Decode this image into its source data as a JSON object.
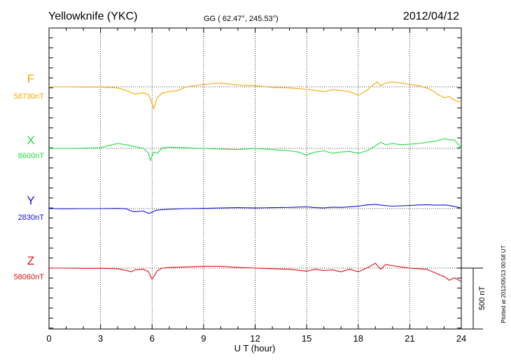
{
  "header": {
    "station": "Yellowknife (YKC)",
    "coords": "GG ( 62.47°, 245.53°)",
    "date": "2012/04/12"
  },
  "footer_note": "Plotted at 2012/05/13 00:58 UT",
  "scale_bar_label": "500 nT",
  "chart_data": {
    "type": "line",
    "title": "Yellowknife (YKC)",
    "xlabel": "U T (hour)",
    "xlim": [
      0,
      24
    ],
    "x_ticks": [
      "0",
      "3",
      "6",
      "9",
      "12",
      "15",
      "18",
      "21",
      "24"
    ],
    "grid": true,
    "y_unit": "nT",
    "scale_bar_nT": 500,
    "series": [
      {
        "name": "F",
        "baseline_label": "58730nT",
        "color": "#f5a800",
        "baseline": 58730,
        "x": [
          0,
          1,
          2,
          3,
          4,
          4.5,
          5,
          5.5,
          5.8,
          6.0,
          6.1,
          6.3,
          6.6,
          7,
          7.5,
          8,
          9,
          10,
          11,
          12,
          13,
          14,
          15,
          15.5,
          16,
          16.5,
          17,
          17.5,
          18,
          18.5,
          18.8,
          19.1,
          19.3,
          19.6,
          20,
          20.5,
          21,
          21.5,
          22,
          22.3,
          22.6,
          23,
          23.3,
          23.6,
          24
        ],
        "values": [
          58730,
          58730,
          58728,
          58728,
          58720,
          58700,
          58670,
          58680,
          58665,
          58590,
          58550,
          58640,
          58680,
          58690,
          58700,
          58730,
          58750,
          58760,
          58745,
          58740,
          58725,
          58720,
          58710,
          58700,
          58690,
          58705,
          58700,
          58690,
          58660,
          58700,
          58740,
          58770,
          58740,
          58760,
          58770,
          58760,
          58750,
          58740,
          58720,
          58700,
          58670,
          58640,
          58650,
          58620,
          58600
        ]
      },
      {
        "name": "X",
        "baseline_label": "8600nT",
        "color": "#22dd44",
        "baseline": 8600,
        "x": [
          0,
          1,
          2,
          3,
          3.5,
          4,
          4.5,
          5,
          5.5,
          5.8,
          5.9,
          6.0,
          6.1,
          6.3,
          6.6,
          7,
          8,
          9,
          10,
          11,
          12,
          13,
          14,
          14.5,
          15,
          15.5,
          16,
          16.5,
          17,
          17.5,
          18,
          18.5,
          19,
          19.3,
          19.6,
          20,
          20.5,
          21,
          21.5,
          22,
          22.5,
          23,
          23.3,
          23.6,
          23.9,
          24
        ],
        "values": [
          8600,
          8600,
          8602,
          8605,
          8625,
          8640,
          8630,
          8615,
          8600,
          8560,
          8500,
          8540,
          8570,
          8560,
          8605,
          8610,
          8605,
          8600,
          8595,
          8590,
          8600,
          8590,
          8580,
          8570,
          8545,
          8570,
          8580,
          8560,
          8570,
          8575,
          8560,
          8580,
          8620,
          8650,
          8630,
          8640,
          8630,
          8635,
          8640,
          8650,
          8660,
          8680,
          8670,
          8670,
          8620,
          8590
        ]
      },
      {
        "name": "Y",
        "baseline_label": "2830nT",
        "color": "#1111dd",
        "baseline": 2830,
        "x": [
          0,
          1,
          2,
          3,
          4,
          4.5,
          4.8,
          5,
          5.5,
          5.8,
          6.0,
          6.2,
          6.5,
          7,
          8,
          9,
          10,
          11,
          12,
          13,
          14,
          15,
          15.5,
          16,
          16.5,
          17,
          17.5,
          18,
          18.5,
          19,
          19.5,
          20,
          21,
          21.5,
          22,
          22.5,
          23,
          23.3,
          23.6,
          24
        ],
        "values": [
          2830,
          2828,
          2830,
          2830,
          2832,
          2828,
          2810,
          2805,
          2810,
          2790,
          2800,
          2815,
          2820,
          2825,
          2830,
          2832,
          2835,
          2838,
          2835,
          2838,
          2840,
          2845,
          2838,
          2835,
          2842,
          2840,
          2845,
          2850,
          2860,
          2865,
          2855,
          2850,
          2855,
          2860,
          2862,
          2858,
          2860,
          2855,
          2848,
          2835
        ]
      },
      {
        "name": "Z",
        "baseline_label": "58060nT",
        "color": "#e01010",
        "baseline": 58060,
        "x": [
          0,
          1,
          2,
          3,
          4,
          4.5,
          4.8,
          5,
          5.5,
          5.8,
          5.9,
          6.0,
          6.1,
          6.3,
          6.6,
          7,
          8,
          9,
          10,
          11,
          12,
          13,
          14,
          15,
          15.5,
          16,
          16.5,
          17,
          17.5,
          18,
          18.5,
          19,
          19.3,
          19.6,
          20,
          20.5,
          21,
          21.5,
          22,
          22.5,
          22.8,
          23,
          23.3,
          23.6,
          24
        ],
        "values": [
          58060,
          58060,
          58058,
          58058,
          58055,
          58040,
          58030,
          58045,
          58050,
          58030,
          57995,
          57970,
          57990,
          58040,
          58060,
          58065,
          58070,
          58075,
          58075,
          58065,
          58060,
          58055,
          58050,
          58035,
          58050,
          58040,
          58045,
          58030,
          58050,
          58030,
          58060,
          58100,
          58050,
          58090,
          58080,
          58070,
          58060,
          58055,
          58050,
          58020,
          58000,
          57990,
          57960,
          57980,
          57950
        ]
      }
    ]
  }
}
